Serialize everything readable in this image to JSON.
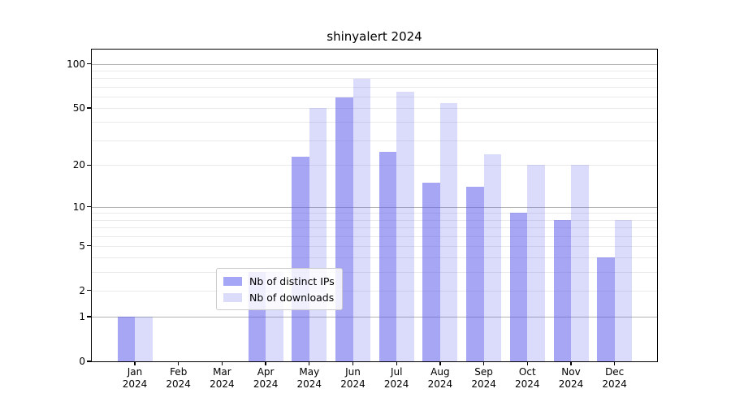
{
  "chart_data": {
    "type": "bar",
    "title": "shinyalert 2024",
    "categories": [
      "Jan 2024",
      "Feb 2024",
      "Mar 2024",
      "Apr 2024",
      "May 2024",
      "Jun 2024",
      "Jul 2024",
      "Aug 2024",
      "Sep 2024",
      "Oct 2024",
      "Nov 2024",
      "Dec 2024"
    ],
    "series": [
      {
        "name": "Nb of distinct IPs",
        "values": [
          1,
          0,
          0,
          3,
          23,
          59,
          25,
          15,
          14,
          9,
          8,
          4
        ],
        "fill": "rgba(90,90,235,0.54)",
        "swatch": "#a6a6f6"
      },
      {
        "name": "Nb of downloads",
        "values": [
          1,
          0,
          0,
          3,
          50,
          79,
          65,
          54,
          24,
          20,
          20,
          8
        ],
        "fill": "rgba(90,90,235,0.22)",
        "swatch": "#dbdbfa"
      }
    ],
    "yscale": "log1p",
    "ylim": [
      0,
      125
    ],
    "yticks": [
      0,
      1,
      2,
      5,
      10,
      20,
      50,
      100
    ],
    "major_gridlines": [
      1,
      10,
      100
    ],
    "minor_gridlines": [
      2,
      3,
      4,
      5,
      6,
      7,
      8,
      9,
      20,
      30,
      40,
      50,
      60,
      70,
      80,
      90
    ],
    "grid_major_color": "#b3b3b3",
    "grid_minor_color": "#eaeaea",
    "legend_position": "lower center",
    "grid": "on"
  },
  "legend": {
    "items": [
      {
        "label": "Nb of distinct IPs"
      },
      {
        "label": "Nb of downloads"
      }
    ]
  }
}
